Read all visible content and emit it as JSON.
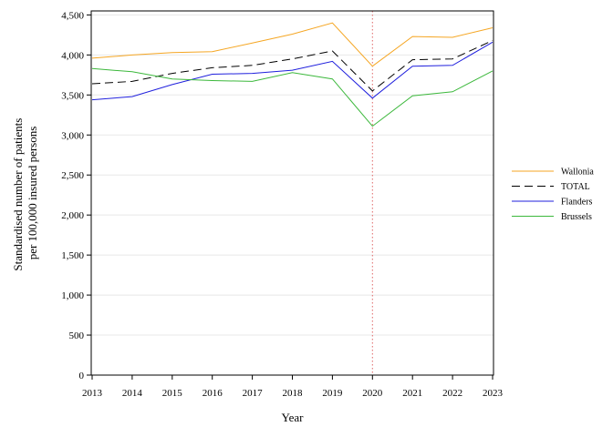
{
  "chart_data": {
    "type": "line",
    "xlabel": "Year",
    "ylabel_lines": [
      "Standardised number of patients",
      "per 100,000 insured persons"
    ],
    "x": [
      2013,
      2014,
      2015,
      2016,
      2017,
      2018,
      2019,
      2020,
      2021,
      2022,
      2023
    ],
    "x_tick_labels": [
      "2013",
      "2014",
      "2015",
      "2016",
      "2017",
      "2018",
      "2019",
      "2020",
      "2021",
      "2022",
      "2023"
    ],
    "ylim": [
      0,
      4550
    ],
    "y_ticks": [
      0,
      500,
      1000,
      1500,
      2000,
      2500,
      3000,
      3500,
      4000,
      4500
    ],
    "y_tick_labels": [
      "0",
      "500",
      "1,000",
      "1,500",
      "2,000",
      "2,500",
      "3,000",
      "3,500",
      "4,000",
      "4,500"
    ],
    "grid": "horizontal, light",
    "legend_position": "right",
    "reference_line": {
      "x": 2020,
      "style": "dotted",
      "color": "#e06666"
    },
    "series": [
      {
        "name": "Wallonia",
        "color": "#f5a623",
        "dash": "solid",
        "values": [
          3960,
          4000,
          4030,
          4040,
          4150,
          4260,
          4400,
          3860,
          4230,
          4220,
          4340
        ]
      },
      {
        "name": "TOTAL",
        "color": "#000000",
        "dash": "dashed",
        "values": [
          3640,
          3670,
          3770,
          3840,
          3870,
          3950,
          4050,
          3550,
          3940,
          3950,
          4180
        ]
      },
      {
        "name": "Flanders",
        "color": "#1f1fdd",
        "dash": "solid",
        "values": [
          3440,
          3480,
          3630,
          3760,
          3770,
          3810,
          3920,
          3460,
          3860,
          3870,
          4160
        ]
      },
      {
        "name": "Brussels",
        "color": "#3cb83c",
        "dash": "solid",
        "values": [
          3830,
          3790,
          3700,
          3680,
          3670,
          3780,
          3700,
          3110,
          3490,
          3540,
          3800
        ]
      }
    ]
  }
}
